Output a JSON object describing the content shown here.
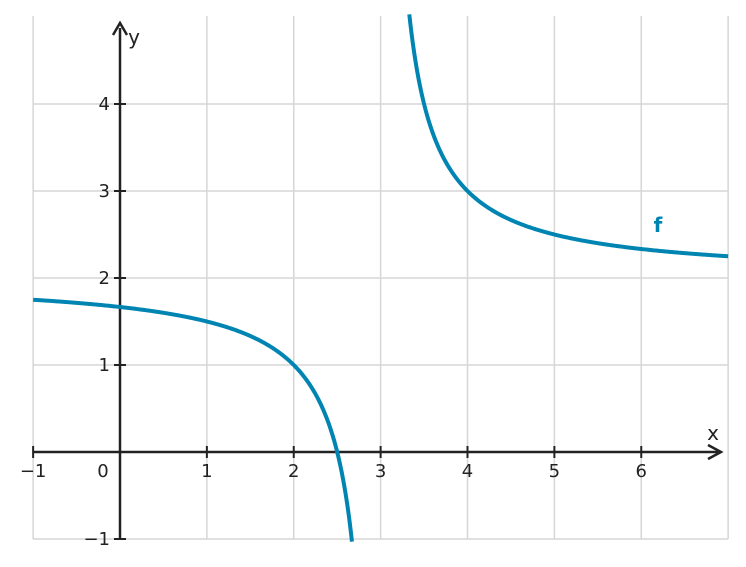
{
  "chart_data": {
    "type": "line",
    "title": "",
    "xlabel": "x",
    "ylabel": "y",
    "xlim": [
      -1,
      7
    ],
    "ylim": [
      -1,
      5
    ],
    "grid": true,
    "x_ticks": [
      -1,
      0,
      1,
      2,
      3,
      4,
      5,
      6
    ],
    "x_tick_labels": [
      "−1",
      "0",
      "1",
      "2",
      "3",
      "4",
      "5",
      "6"
    ],
    "y_ticks": [
      -1,
      1,
      2,
      3,
      4
    ],
    "y_tick_labels": [
      "−1",
      "1",
      "2",
      "3",
      "4"
    ],
    "color": "#0085b2",
    "series": [
      {
        "name": "f",
        "function": "2 + 1/(x - 3)",
        "vertical_asymptote": 3,
        "horizontal_asymptote": 2,
        "branches": [
          {
            "x": [
              -1,
              0,
              1,
              2,
              2.5,
              2.67
            ],
            "y": [
              1.75,
              1.6667,
              1.5,
              1,
              0,
              -1
            ]
          },
          {
            "x": [
              3.33,
              3.5,
              4,
              5,
              6,
              7
            ],
            "y": [
              5,
              4,
              3,
              2.5,
              2.3333,
              2.25
            ]
          }
        ]
      }
    ]
  }
}
